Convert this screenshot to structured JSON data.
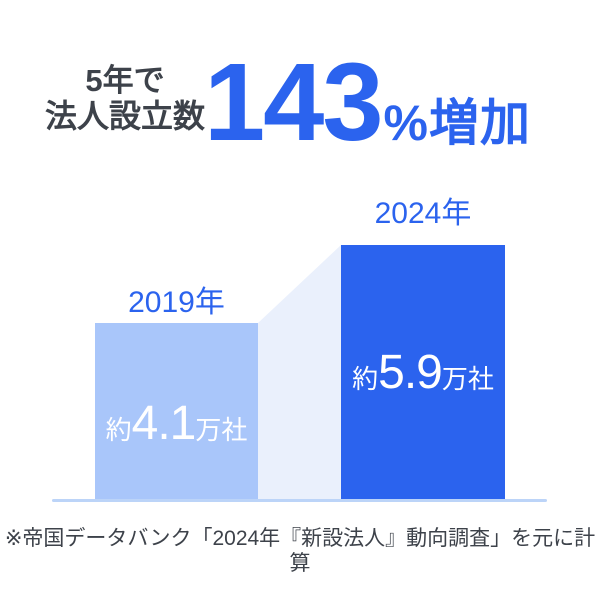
{
  "colors": {
    "accent_blue": "#2B63EE",
    "bar_2019_light_blue": "#A9C6FA",
    "connector_pale_blue": "#EAF0FC",
    "axis_line_blue": "#BCD4F8",
    "text_dark_gray": "#3D424A",
    "bar_value_text": "#FFFFFF",
    "background": "#FFFFFF"
  },
  "headline": {
    "line1": "5年で",
    "line2": "法人設立数",
    "percent_value": "143",
    "percent_suffix": "%増加"
  },
  "chart_data": {
    "type": "bar",
    "title": "5年で法人設立数143%増加",
    "categories": [
      "2019年",
      "2024年"
    ],
    "values": [
      4.1,
      5.9
    ],
    "unit": "万社",
    "ylim": [
      0,
      5.9
    ],
    "grid": false,
    "legend": "none",
    "bars": [
      {
        "year": "2019年",
        "prefix": "約",
        "value": "4.1",
        "suffix": "万社"
      },
      {
        "year": "2024年",
        "prefix": "約",
        "value": "5.9",
        "suffix": "万社"
      }
    ]
  },
  "footnote": {
    "text": "※帝国データバンク「2024年『新設法人』動向調査」を元に計算"
  }
}
